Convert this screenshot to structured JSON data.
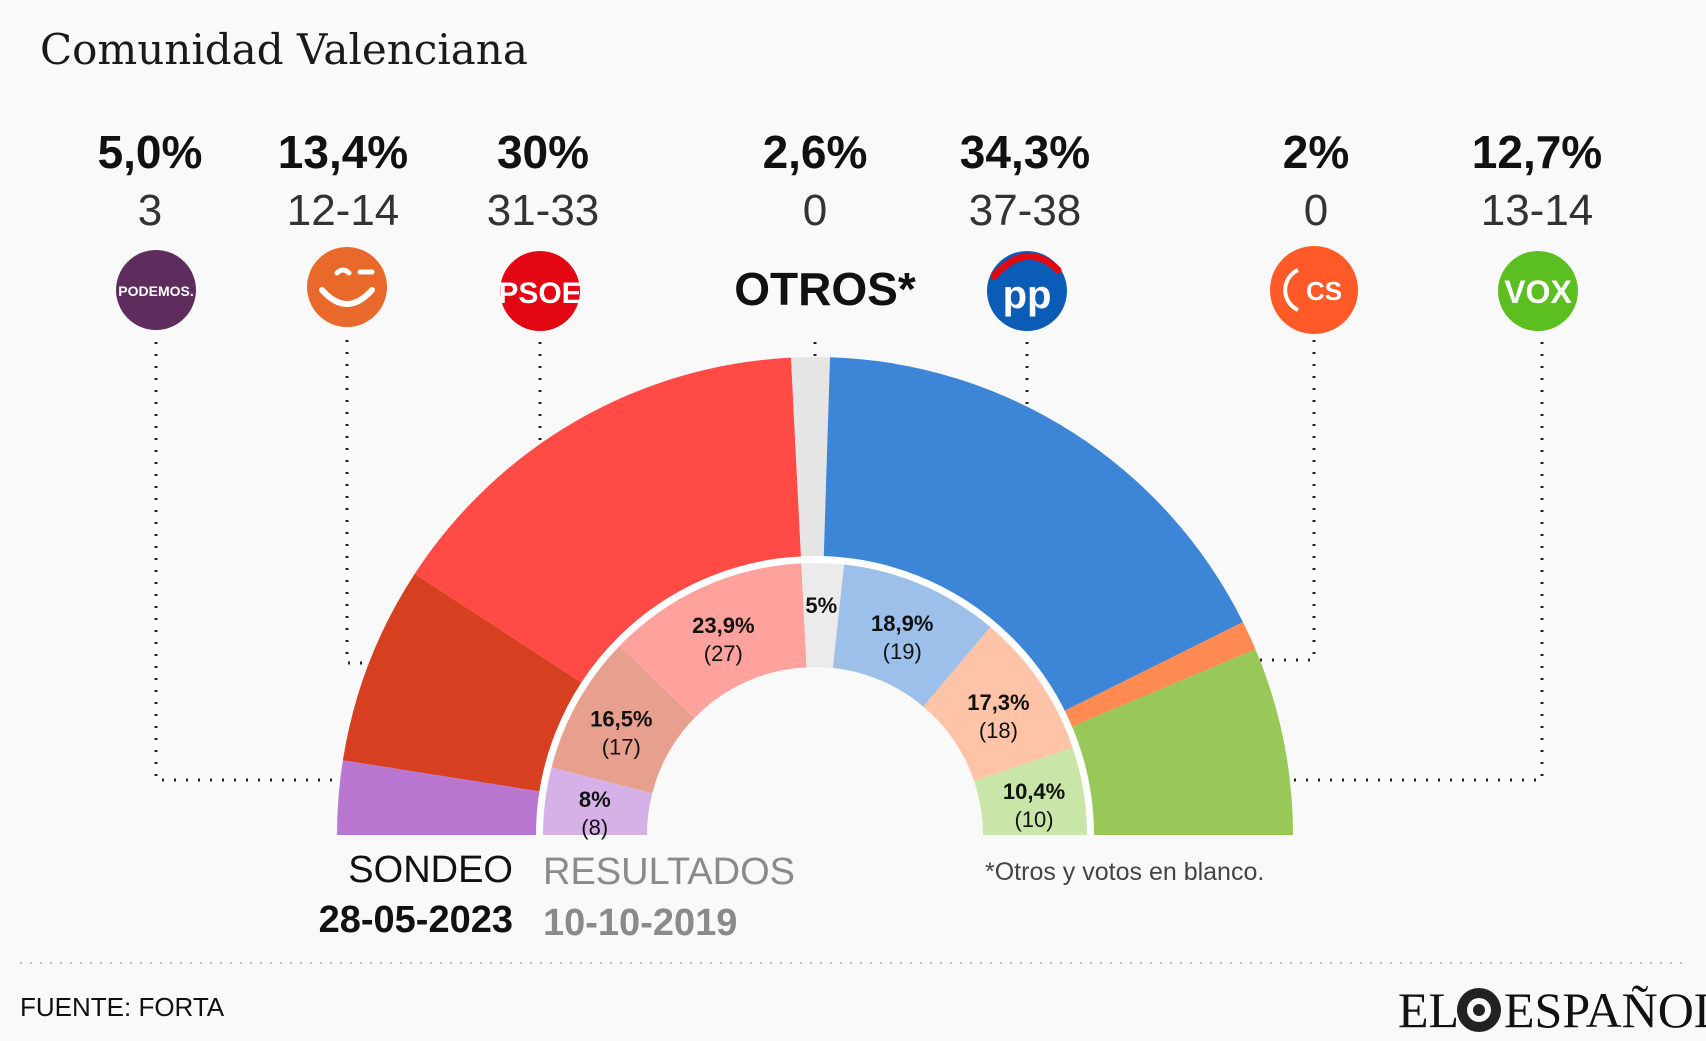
{
  "title": "Comunidad Valenciana",
  "colors": {
    "podemos": "#b977d2",
    "compromis": "#d63f1f",
    "psoe": "#ff4a45",
    "otros": "#e5e5e5",
    "pp": "#3d85d6",
    "cs": "#ff8a52",
    "vox": "#98c857",
    "podemos_prev": "#d6b1e8",
    "compromis_prev": "#e8a08e",
    "psoe_prev": "#ffa19c",
    "otros_prev": "#ebebeb",
    "pp_prev": "#9dc0ea",
    "cs_prev": "#ffc3a8",
    "vox_prev": "#c9e6a8"
  },
  "chart_data": {
    "type": "pie",
    "variant": "double semicircle (parliament)",
    "series": [
      {
        "name": "SONDEO 28-05-2023",
        "parties": [
          {
            "key": "podemos",
            "pct_label": "5,0%",
            "seats": "3",
            "value": 5.0
          },
          {
            "key": "compromis",
            "pct_label": "13,4%",
            "seats": "12-14",
            "value": 13.4
          },
          {
            "key": "psoe",
            "pct_label": "30%",
            "seats": "31-33",
            "value": 30.0
          },
          {
            "key": "otros",
            "pct_label": "2,6%",
            "seats": "0",
            "value": 2.6,
            "name": "OTROS*"
          },
          {
            "key": "pp",
            "pct_label": "34,3%",
            "seats": "37-38",
            "value": 34.3
          },
          {
            "key": "cs",
            "pct_label": "2%",
            "seats": "0",
            "value": 2.0
          },
          {
            "key": "vox",
            "pct_label": "12,7%",
            "seats": "13-14",
            "value": 12.7
          }
        ]
      },
      {
        "name": "RESULTADOS 10-10-2019",
        "parties": [
          {
            "key": "podemos",
            "pct": "8%",
            "seats": "(8)",
            "value": 8.0
          },
          {
            "key": "compromis",
            "pct": "16,5%",
            "seats": "(17)",
            "value": 16.5
          },
          {
            "key": "psoe",
            "pct": "23,9%",
            "seats": "(27)",
            "value": 23.9
          },
          {
            "key": "otros",
            "pct": "5%",
            "seats": "",
            "value": 5.0
          },
          {
            "key": "pp",
            "pct": "18,9%",
            "seats": "(19)",
            "value": 18.9
          },
          {
            "key": "cs",
            "pct": "17,3%",
            "seats": "(18)",
            "value": 17.3
          },
          {
            "key": "vox",
            "pct": "10,4%",
            "seats": "(10)",
            "value": 10.4
          }
        ]
      }
    ]
  },
  "logos": {
    "podemos": "PODEMOS.",
    "psoe": "PSOE",
    "pp": "pp",
    "cs": "CS",
    "vox": "VOX"
  },
  "legend": {
    "current_label": "SONDEO",
    "current_date": "28-05-2023",
    "previous_label": "RESULTADOS",
    "previous_date": "10-10-2019"
  },
  "note": "*Otros y votos en blanco.",
  "source": "FUENTE: FORTA",
  "brand_left": "EL",
  "brand_right": "ESPAÑOL"
}
